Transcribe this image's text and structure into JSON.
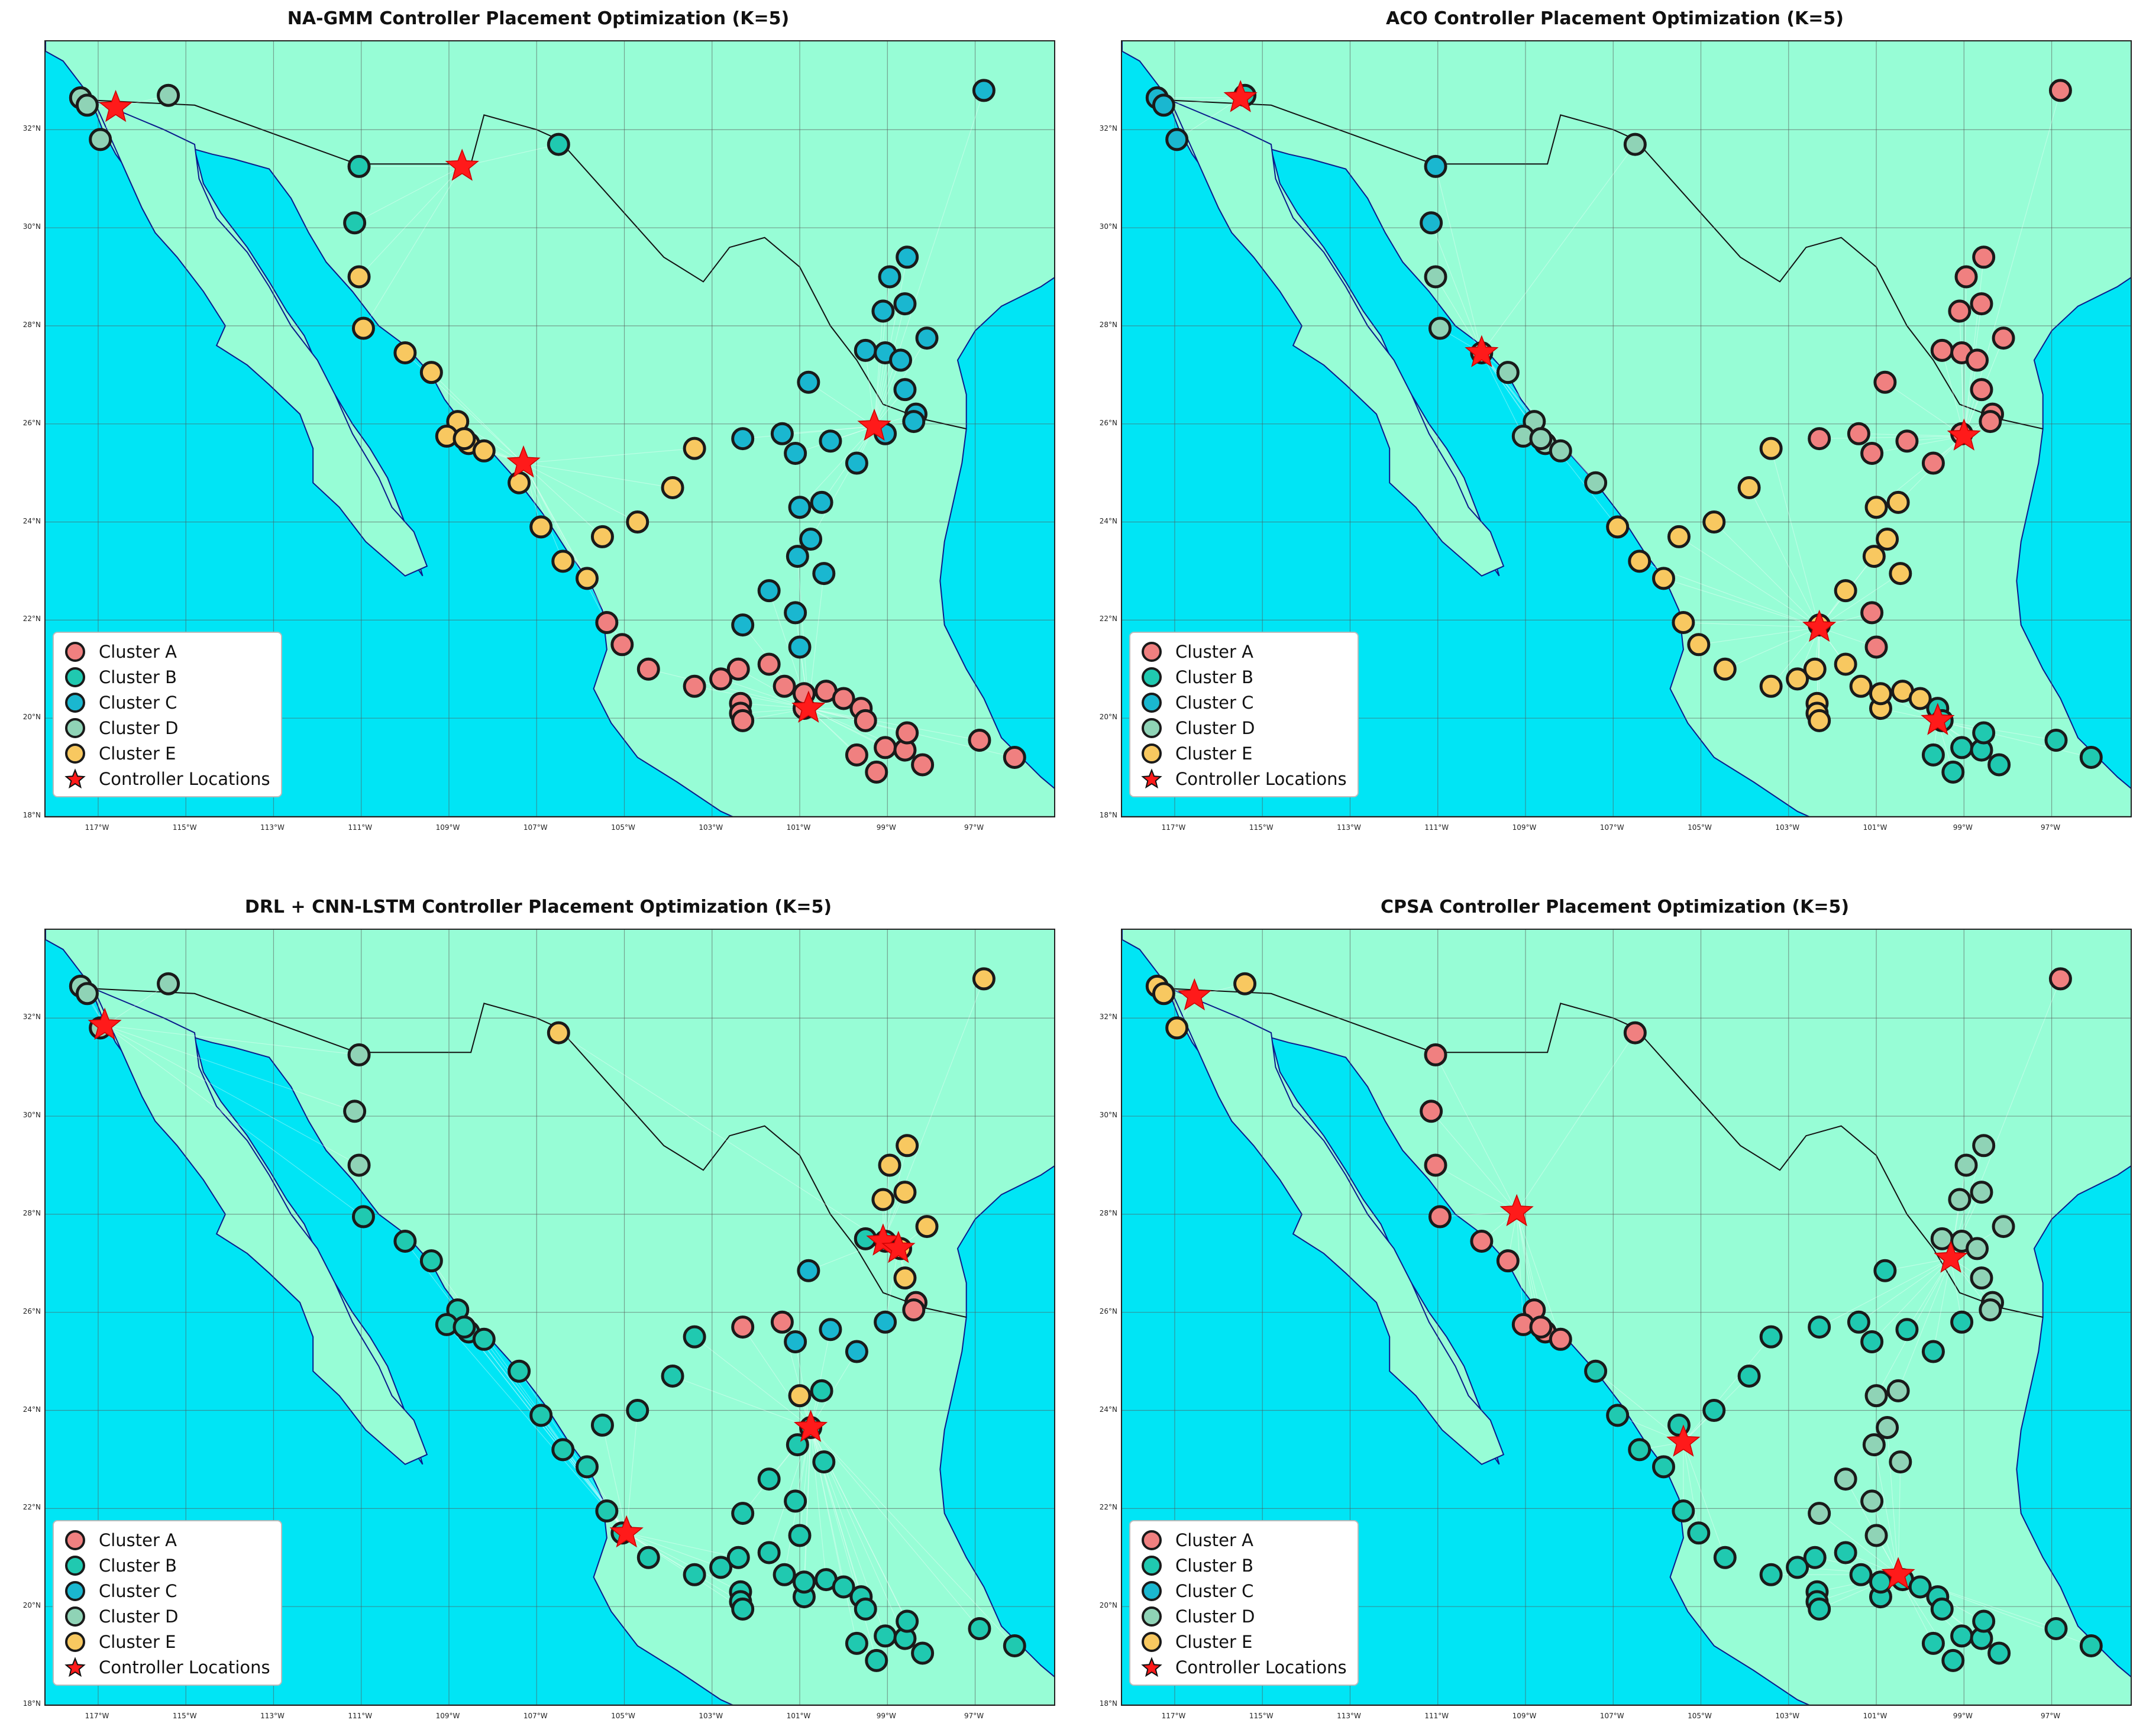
{
  "map": {
    "lon_range": [
      -118.2,
      -95.2
    ],
    "lat_range": [
      18.0,
      33.8
    ],
    "lat_ticks": [
      {
        "value": 18,
        "label": "18°N"
      },
      {
        "value": 20,
        "label": "20°N"
      },
      {
        "value": 22,
        "label": "22°N"
      },
      {
        "value": 24,
        "label": "24°N"
      },
      {
        "value": 26,
        "label": "26°N"
      },
      {
        "value": 28,
        "label": "28°N"
      },
      {
        "value": 30,
        "label": "30°N"
      },
      {
        "value": 32,
        "label": "32°N"
      }
    ],
    "lon_ticks": [
      {
        "value": -117,
        "label": "117°W"
      },
      {
        "value": -115,
        "label": "115°W"
      },
      {
        "value": -113,
        "label": "113°W"
      },
      {
        "value": -111,
        "label": "111°W"
      },
      {
        "value": -109,
        "label": "109°W"
      },
      {
        "value": -107,
        "label": "107°W"
      },
      {
        "value": -105,
        "label": "105°W"
      },
      {
        "value": -103,
        "label": "103°W"
      },
      {
        "value": -101,
        "label": "101°W"
      },
      {
        "value": -99,
        "label": "99°W"
      },
      {
        "value": -97,
        "label": "97°W"
      }
    ],
    "colors": {
      "ocean": "#00e5f5",
      "land": "#97fdd6",
      "coastline": "#0a1a8c",
      "border": "#111111",
      "grid": "#555555"
    },
    "mainland": [
      [
        -117.2,
        32.7
      ],
      [
        -116.9,
        32.0
      ],
      [
        -116.6,
        31.5
      ],
      [
        -116.2,
        31.0
      ],
      [
        -115.9,
        30.4
      ],
      [
        -115.5,
        29.9
      ],
      [
        -114.9,
        29.3
      ],
      [
        -114.4,
        28.8
      ],
      [
        -114.1,
        28.3
      ],
      [
        -113.6,
        27.9
      ],
      [
        -112.9,
        27.4
      ],
      [
        -112.4,
        26.9
      ],
      [
        -112.0,
        26.4
      ],
      [
        -111.4,
        25.8
      ],
      [
        -111.0,
        25.2
      ],
      [
        -110.7,
        24.6
      ],
      [
        -110.3,
        24.0
      ],
      [
        -109.9,
        23.3
      ],
      [
        -109.6,
        22.9
      ],
      [
        -109.8,
        23.5
      ],
      [
        -110.1,
        24.2
      ],
      [
        -110.4,
        24.9
      ],
      [
        -110.8,
        25.5
      ],
      [
        -111.2,
        26.0
      ],
      [
        -111.6,
        26.6
      ],
      [
        -112.0,
        27.2
      ],
      [
        -112.3,
        27.8
      ],
      [
        -112.7,
        28.3
      ],
      [
        -113.1,
        28.9
      ],
      [
        -113.6,
        29.6
      ],
      [
        -114.2,
        30.3
      ],
      [
        -114.6,
        30.9
      ],
      [
        -114.8,
        31.6
      ],
      [
        -114.4,
        31.5
      ],
      [
        -113.9,
        31.4
      ],
      [
        -113.1,
        31.2
      ],
      [
        -112.6,
        30.6
      ],
      [
        -112.2,
        29.9
      ],
      [
        -111.8,
        29.3
      ],
      [
        -111.2,
        28.7
      ],
      [
        -110.6,
        28.0
      ],
      [
        -110.0,
        27.6
      ],
      [
        -109.4,
        27.0
      ],
      [
        -109.1,
        26.5
      ],
      [
        -108.6,
        25.9
      ],
      [
        -108.0,
        25.4
      ],
      [
        -107.4,
        24.8
      ],
      [
        -106.8,
        24.1
      ],
      [
        -106.3,
        23.4
      ],
      [
        -105.8,
        22.8
      ],
      [
        -105.5,
        22.2
      ],
      [
        -105.4,
        21.4
      ],
      [
        -105.7,
        20.6
      ],
      [
        -105.3,
        19.9
      ],
      [
        -104.7,
        19.2
      ],
      [
        -103.8,
        18.7
      ],
      [
        -102.8,
        18.1
      ],
      [
        -101.8,
        17.7
      ],
      [
        -100.7,
        17.2
      ],
      [
        -99.5,
        16.7
      ],
      [
        -98.5,
        16.4
      ],
      [
        -96.5,
        15.7
      ],
      [
        -95.0,
        15.7
      ],
      [
        -94.8,
        16.1
      ],
      [
        -94.4,
        17.5
      ],
      [
        -94.7,
        18.2
      ],
      [
        -95.5,
        18.8
      ],
      [
        -96.4,
        19.6
      ],
      [
        -96.8,
        20.4
      ],
      [
        -97.2,
        21.0
      ],
      [
        -97.7,
        21.9
      ],
      [
        -97.8,
        22.8
      ],
      [
        -97.7,
        23.6
      ],
      [
        -97.5,
        24.4
      ],
      [
        -97.3,
        25.2
      ],
      [
        -97.2,
        25.9
      ],
      [
        -97.2,
        26.6
      ],
      [
        -97.4,
        27.3
      ],
      [
        -97.0,
        27.9
      ],
      [
        -96.4,
        28.4
      ],
      [
        -95.5,
        28.8
      ],
      [
        -94.5,
        29.4
      ],
      [
        -93.0,
        29.8
      ],
      [
        -90.0,
        30.0
      ],
      [
        -90.0,
        35.0
      ],
      [
        -118.2,
        35.0
      ],
      [
        -118.2,
        33.6
      ],
      [
        -117.8,
        33.4
      ],
      [
        -117.2,
        32.7
      ]
    ],
    "baja": [
      [
        -117.1,
        32.6
      ],
      [
        -116.8,
        32.0
      ],
      [
        -116.6,
        31.6
      ],
      [
        -116.3,
        31.0
      ],
      [
        -116.0,
        30.4
      ],
      [
        -115.7,
        29.9
      ],
      [
        -115.2,
        29.4
      ],
      [
        -114.6,
        28.7
      ],
      [
        -114.1,
        28.0
      ],
      [
        -114.3,
        27.6
      ],
      [
        -113.6,
        27.2
      ],
      [
        -113.1,
        26.8
      ],
      [
        -112.4,
        26.2
      ],
      [
        -112.1,
        25.5
      ],
      [
        -112.1,
        24.8
      ],
      [
        -111.5,
        24.3
      ],
      [
        -110.9,
        23.6
      ],
      [
        -110.0,
        22.9
      ],
      [
        -109.5,
        23.1
      ],
      [
        -109.8,
        23.8
      ],
      [
        -110.3,
        24.3
      ],
      [
        -110.6,
        24.9
      ],
      [
        -111.2,
        25.8
      ],
      [
        -111.6,
        26.6
      ],
      [
        -112.0,
        27.3
      ],
      [
        -112.6,
        28.0
      ],
      [
        -113.1,
        28.8
      ],
      [
        -113.6,
        29.5
      ],
      [
        -114.3,
        30.2
      ],
      [
        -114.7,
        31.0
      ],
      [
        -114.8,
        31.7
      ],
      [
        -115.5,
        32.0
      ],
      [
        -117.1,
        32.6
      ]
    ],
    "rivers": [
      [
        [
          -97.2,
          25.9
        ],
        [
          -98.2,
          26.1
        ],
        [
          -99.1,
          26.4
        ],
        [
          -99.7,
          27.3
        ],
        [
          -100.3,
          28.0
        ],
        [
          -101.0,
          29.2
        ],
        [
          -101.8,
          29.8
        ],
        [
          -102.6,
          29.6
        ],
        [
          -103.2,
          28.9
        ],
        [
          -104.1,
          29.4
        ],
        [
          -104.8,
          30.1
        ],
        [
          -105.6,
          30.9
        ],
        [
          -106.5,
          31.8
        ],
        [
          -107.0,
          32.0
        ],
        [
          -108.2,
          32.3
        ],
        [
          -108.5,
          31.3
        ],
        [
          -111.1,
          31.3
        ],
        [
          -114.8,
          32.5
        ],
        [
          -117.1,
          32.6
        ]
      ]
    ],
    "border": [
      [
        -117.1,
        32.6
      ],
      [
        -114.8,
        32.7
      ],
      [
        -114.8,
        32.5
      ],
      [
        -111.1,
        31.3
      ],
      [
        -108.2,
        31.3
      ],
      [
        -108.2,
        31.8
      ],
      [
        -106.5,
        31.8
      ]
    ],
    "nodes": [
      {
        "lon": -117.4,
        "lat": 32.65
      },
      {
        "lon": -117.25,
        "lat": 32.5
      },
      {
        "lon": -116.95,
        "lat": 31.8
      },
      {
        "lon": -115.4,
        "lat": 32.7
      },
      {
        "lon": -111.05,
        "lat": 31.25
      },
      {
        "lon": -106.5,
        "lat": 31.7
      },
      {
        "lon": -96.8,
        "lat": 32.8
      },
      {
        "lon": -111.15,
        "lat": 30.1
      },
      {
        "lon": -111.05,
        "lat": 29.0
      },
      {
        "lon": -110.95,
        "lat": 27.95
      },
      {
        "lon": -110.0,
        "lat": 27.45
      },
      {
        "lon": -109.4,
        "lat": 27.05
      },
      {
        "lon": -108.8,
        "lat": 26.05
      },
      {
        "lon": -109.05,
        "lat": 25.75
      },
      {
        "lon": -108.55,
        "lat": 25.6
      },
      {
        "lon": -108.2,
        "lat": 25.45
      },
      {
        "lon": -108.65,
        "lat": 25.7
      },
      {
        "lon": -107.4,
        "lat": 24.8
      },
      {
        "lon": -106.9,
        "lat": 23.9
      },
      {
        "lon": -106.4,
        "lat": 23.2
      },
      {
        "lon": -105.85,
        "lat": 22.85
      },
      {
        "lon": -105.5,
        "lat": 23.7
      },
      {
        "lon": -104.7,
        "lat": 24.0
      },
      {
        "lon": -103.9,
        "lat": 24.7
      },
      {
        "lon": -103.4,
        "lat": 25.5
      },
      {
        "lon": -105.4,
        "lat": 21.95
      },
      {
        "lon": -105.05,
        "lat": 21.5
      },
      {
        "lon": -104.45,
        "lat": 21.0
      },
      {
        "lon": -103.4,
        "lat": 20.65
      },
      {
        "lon": -102.8,
        "lat": 20.8
      },
      {
        "lon": -102.4,
        "lat": 21.0
      },
      {
        "lon": -102.35,
        "lat": 20.3
      },
      {
        "lon": -102.35,
        "lat": 20.1
      },
      {
        "lon": -102.3,
        "lat": 19.95
      },
      {
        "lon": -101.7,
        "lat": 21.1
      },
      {
        "lon": -101.35,
        "lat": 20.65
      },
      {
        "lon": -100.9,
        "lat": 20.2
      },
      {
        "lon": -100.9,
        "lat": 20.5
      },
      {
        "lon": -100.4,
        "lat": 20.55
      },
      {
        "lon": -100.0,
        "lat": 20.4
      },
      {
        "lon": -99.6,
        "lat": 20.2
      },
      {
        "lon": -99.5,
        "lat": 19.95
      },
      {
        "lon": -99.7,
        "lat": 19.25
      },
      {
        "lon": -99.25,
        "lat": 18.9
      },
      {
        "lon": -99.05,
        "lat": 19.4
      },
      {
        "lon": -98.6,
        "lat": 19.35
      },
      {
        "lon": -98.55,
        "lat": 19.7
      },
      {
        "lon": -98.2,
        "lat": 19.05
      },
      {
        "lon": -96.9,
        "lat": 19.55
      },
      {
        "lon": -96.1,
        "lat": 19.2
      },
      {
        "lon": -102.3,
        "lat": 25.7
      },
      {
        "lon": -101.4,
        "lat": 25.8
      },
      {
        "lon": -101.1,
        "lat": 25.4
      },
      {
        "lon": -100.3,
        "lat": 25.65
      },
      {
        "lon": -99.7,
        "lat": 25.2
      },
      {
        "lon": -99.05,
        "lat": 25.8
      },
      {
        "lon": -100.8,
        "lat": 26.85
      },
      {
        "lon": -101.0,
        "lat": 24.3
      },
      {
        "lon": -100.5,
        "lat": 24.4
      },
      {
        "lon": -100.75,
        "lat": 23.65
      },
      {
        "lon": -101.05,
        "lat": 23.3
      },
      {
        "lon": -100.45,
        "lat": 22.95
      },
      {
        "lon": -101.7,
        "lat": 22.6
      },
      {
        "lon": -102.3,
        "lat": 21.9
      },
      {
        "lon": -101.1,
        "lat": 22.15
      },
      {
        "lon": -101.0,
        "lat": 21.45
      },
      {
        "lon": -99.5,
        "lat": 27.5
      },
      {
        "lon": -99.05,
        "lat": 27.45
      },
      {
        "lon": -98.7,
        "lat": 27.3
      },
      {
        "lon": -99.1,
        "lat": 28.3
      },
      {
        "lon": -98.95,
        "lat": 29.0
      },
      {
        "lon": -98.55,
        "lat": 29.4
      },
      {
        "lon": -98.6,
        "lat": 28.45
      },
      {
        "lon": -98.1,
        "lat": 27.75
      },
      {
        "lon": -98.6,
        "lat": 26.7
      },
      {
        "lon": -98.35,
        "lat": 26.2
      },
      {
        "lon": -98.4,
        "lat": 26.05
      }
    ],
    "panels": [
      {
        "title": "NA-GMM Controller Placement Optimization (K=5)",
        "assign": "DDDDBBCBEEEEEEEEEEEEEEEEEAAAAAAAAAAAAAAAAAAAAAAAAACCCCCCCCCCCCCCCCCCCCCCCCCCCC",
        "controllers": [
          {
            "lon": -116.6,
            "lat": 32.45
          },
          {
            "lon": -108.7,
            "lat": 31.25
          },
          {
            "lon": -107.3,
            "lat": 25.2
          },
          {
            "lon": -99.3,
            "lat": 25.95
          },
          {
            "lon": -100.8,
            "lat": 20.2
          }
        ]
      },
      {
        "title": "ACO Controller Placement Optimization (K=5)",
        "assign": "CCCBCDACDDDDDDDDDDEEEEEEEEEEEEEEEEEEEEEEBBBBBBBBBBAAAAAAAEEEEEEEAAAAAAAAAAAAA",
        "controllers": [
          {
            "lon": -115.5,
            "lat": 32.65
          },
          {
            "lon": -110.0,
            "lat": 27.45
          },
          {
            "lon": -99.0,
            "lat": 25.75
          },
          {
            "lon": -102.3,
            "lat": 21.85
          },
          {
            "lon": -99.6,
            "lat": 19.95
          }
        ]
      },
      {
        "title": "DRL + CNN-LSTM Controller Placement Optimization (K=5)",
        "assign": "DDDDDEEDDBBBBBBBBBBBBBBBBBBBBBBBBBBBBBBBBBBBBBBBBBAACCCCCEBBBBBBBBBBEEEEEEEAAAA",
        "controllers": [
          {
            "lon": -116.85,
            "lat": 31.85
          },
          {
            "lon": -104.95,
            "lat": 21.5
          },
          {
            "lon": -100.75,
            "lat": 23.65
          },
          {
            "lon": -99.1,
            "lat": 27.45
          },
          {
            "lon": -98.75,
            "lat": 27.3
          }
        ]
      },
      {
        "title": "CPSA Controller Placement Optimization (K=5)",
        "assign": "EEEEAAAAAAAAAAAAABBBBBBBBBBBBBBBBBBBBBBBBBBBBBBBBBBBBBBBBDDDDDDDDDDDDDDDDDDDD",
        "controllers": [
          {
            "lon": -116.55,
            "lat": 32.45
          },
          {
            "lon": -109.2,
            "lat": 28.05
          },
          {
            "lon": -105.4,
            "lat": 23.35
          },
          {
            "lon": -100.5,
            "lat": 20.65
          },
          {
            "lon": -99.3,
            "lat": 27.1
          }
        ]
      }
    ],
    "cluster_colors": {
      "A": "#f08080",
      "B": "#20c9b0",
      "C": "#1ab7d0",
      "D": "#8fd3b6",
      "E": "#f8c860"
    },
    "legend": [
      {
        "key": "A",
        "label": "Cluster A"
      },
      {
        "key": "B",
        "label": "Cluster B"
      },
      {
        "key": "C",
        "label": "Cluster C"
      },
      {
        "key": "D",
        "label": "Cluster D"
      },
      {
        "key": "E",
        "label": "Cluster E"
      },
      {
        "key": "star",
        "label": "Controller Locations"
      }
    ],
    "controller_color": "#ff1a1a"
  }
}
